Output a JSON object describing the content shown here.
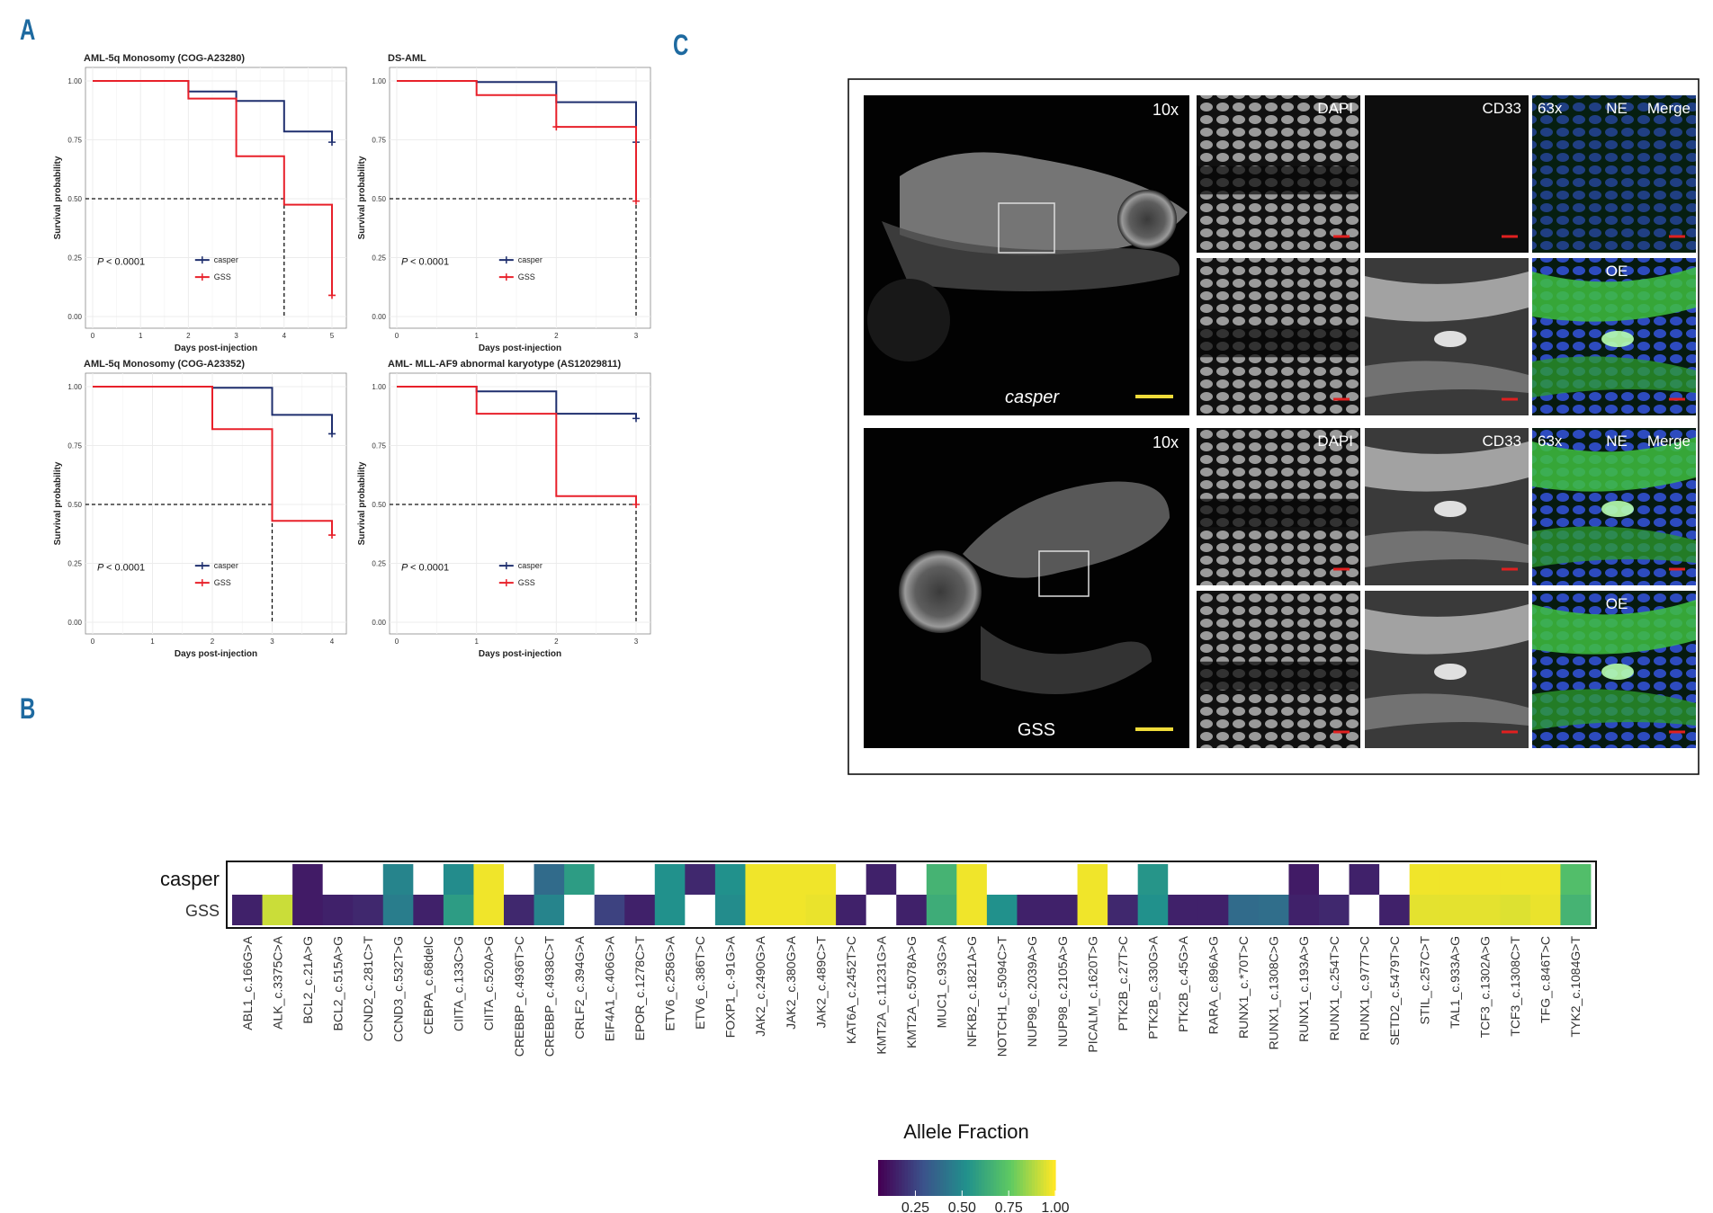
{
  "figure": {
    "panel_labels": {
      "a": "A",
      "b": "B",
      "c": "C"
    }
  },
  "chart_data": [
    {
      "type": "line",
      "subtype": "kaplan-meier",
      "title": "AML-5q Monosomy (COG-A23280)",
      "xlabel": "Days post-injection",
      "ylabel": "Survival probability",
      "xlim": [
        0,
        5
      ],
      "ylim": [
        0,
        1
      ],
      "xticks": [
        0,
        1,
        2,
        3,
        4,
        5
      ],
      "yticks": [
        "0.00",
        "0.25",
        "0.50",
        "0.75",
        "1.00"
      ],
      "pvalue": "< 0.0001",
      "pvalue_symbol": "P",
      "legend": [
        "casper",
        "GSS"
      ],
      "legend_placement": "bottom-center",
      "median_line": {
        "y": 0.5,
        "x_end": 4
      },
      "series": [
        {
          "name": "casper",
          "color": "#1f2f6e",
          "steps": [
            [
              0,
              1.0
            ],
            [
              2,
              1.0
            ],
            [
              2,
              0.955
            ],
            [
              3,
              0.955
            ],
            [
              3,
              0.915
            ],
            [
              4,
              0.915
            ],
            [
              4,
              0.785
            ],
            [
              5,
              0.785
            ],
            [
              5,
              0.74
            ]
          ],
          "censor": [
            [
              5,
              0.74
            ]
          ]
        },
        {
          "name": "GSS",
          "color": "#e8202a",
          "steps": [
            [
              0,
              1.0
            ],
            [
              2,
              1.0
            ],
            [
              2,
              0.925
            ],
            [
              3,
              0.925
            ],
            [
              3,
              0.68
            ],
            [
              4,
              0.68
            ],
            [
              4,
              0.475
            ],
            [
              5,
              0.475
            ],
            [
              5,
              0.09
            ]
          ],
          "censor": [
            [
              5,
              0.09
            ]
          ]
        }
      ]
    },
    {
      "type": "line",
      "subtype": "kaplan-meier",
      "title": "DS-AML",
      "xlabel": "Days post-injection",
      "ylabel": "Survival probability",
      "xlim": [
        0,
        3
      ],
      "ylim": [
        0,
        1
      ],
      "xticks": [
        0,
        1,
        2,
        3
      ],
      "yticks": [
        "0.00",
        "0.25",
        "0.50",
        "0.75",
        "1.00"
      ],
      "pvalue": "< 0.0001",
      "pvalue_symbol": "P",
      "legend": [
        "casper",
        "GSS"
      ],
      "legend_placement": "bottom-center",
      "median_line": {
        "y": 0.5,
        "x_end": 3
      },
      "series": [
        {
          "name": "casper",
          "color": "#1f2f6e",
          "steps": [
            [
              0,
              1.0
            ],
            [
              1,
              1.0
            ],
            [
              1,
              0.995
            ],
            [
              2,
              0.995
            ],
            [
              2,
              0.91
            ],
            [
              3,
              0.91
            ],
            [
              3,
              0.74
            ]
          ],
          "censor": [
            [
              3,
              0.74
            ]
          ]
        },
        {
          "name": "GSS",
          "color": "#e8202a",
          "steps": [
            [
              0,
              1.0
            ],
            [
              1,
              1.0
            ],
            [
              1,
              0.94
            ],
            [
              2,
              0.94
            ],
            [
              2,
              0.805
            ],
            [
              3,
              0.805
            ],
            [
              3,
              0.49
            ]
          ],
          "censor": [
            [
              2,
              0.805
            ],
            [
              3,
              0.49
            ]
          ]
        }
      ]
    },
    {
      "type": "line",
      "subtype": "kaplan-meier",
      "title": "AML-5q Monosomy (COG-A23352)",
      "xlabel": "Days post-injection",
      "ylabel": "Survival probability",
      "xlim": [
        0,
        4
      ],
      "ylim": [
        0,
        1
      ],
      "xticks": [
        0,
        1,
        2,
        3,
        4
      ],
      "yticks": [
        "0.00",
        "0.25",
        "0.50",
        "0.75",
        "1.00"
      ],
      "pvalue": "< 0.0001",
      "pvalue_symbol": "P",
      "legend": [
        "casper",
        "GSS"
      ],
      "legend_placement": "bottom-center",
      "median_line": {
        "y": 0.5,
        "x_end": 3
      },
      "series": [
        {
          "name": "casper",
          "color": "#1f2f6e",
          "steps": [
            [
              0,
              1.0
            ],
            [
              2,
              1.0
            ],
            [
              2,
              0.995
            ],
            [
              3,
              0.995
            ],
            [
              3,
              0.88
            ],
            [
              4,
              0.88
            ],
            [
              4,
              0.8
            ]
          ],
          "censor": [
            [
              4,
              0.8
            ]
          ]
        },
        {
          "name": "GSS",
          "color": "#e8202a",
          "steps": [
            [
              0,
              1.0
            ],
            [
              2,
              1.0
            ],
            [
              2,
              0.82
            ],
            [
              3,
              0.82
            ],
            [
              3,
              0.43
            ],
            [
              4,
              0.43
            ],
            [
              4,
              0.37
            ]
          ],
          "censor": [
            [
              4,
              0.37
            ]
          ]
        }
      ]
    },
    {
      "type": "line",
      "subtype": "kaplan-meier",
      "title": "AML- MLL-AF9 abnormal karyotype (AS12029811)",
      "xlabel": "Days post-injection",
      "ylabel": "Survival probability",
      "xlim": [
        0,
        3
      ],
      "ylim": [
        0,
        1
      ],
      "xticks": [
        0,
        1,
        2,
        3
      ],
      "yticks": [
        "0.00",
        "0.25",
        "0.50",
        "0.75",
        "1.00"
      ],
      "pvalue": "< 0.0001",
      "pvalue_symbol": "P",
      "legend": [
        "casper",
        "GSS"
      ],
      "legend_placement": "bottom-center",
      "median_line": {
        "y": 0.5,
        "x_end": 3
      },
      "series": [
        {
          "name": "casper",
          "color": "#1f2f6e",
          "steps": [
            [
              0,
              1.0
            ],
            [
              1,
              1.0
            ],
            [
              1,
              0.98
            ],
            [
              2,
              0.98
            ],
            [
              2,
              0.885
            ],
            [
              3,
              0.885
            ],
            [
              3,
              0.865
            ]
          ],
          "censor": [
            [
              3,
              0.865
            ]
          ]
        },
        {
          "name": "GSS",
          "color": "#e8202a",
          "steps": [
            [
              0,
              1.0
            ],
            [
              1,
              1.0
            ],
            [
              1,
              0.885
            ],
            [
              2,
              0.885
            ],
            [
              2,
              0.535
            ],
            [
              3,
              0.535
            ],
            [
              3,
              0.5
            ]
          ],
          "censor": [
            [
              3,
              0.5
            ]
          ]
        }
      ]
    },
    {
      "type": "heatmap",
      "rows": [
        "casper",
        "GSS"
      ],
      "columns": [
        "ABL1_c.166G>A",
        "ALK_c.3375C>A",
        "BCL2_c.21A>G",
        "BCL2_c.515A>G",
        "CCND2_c.281C>T",
        "CCND3_c.532T>G",
        "CEBPA_c.68delC",
        "CIITA_c.133C>G",
        "CIITA_c.520A>G",
        "CREBBP_c.4936T>C",
        "CREBBP_c.4938C>T",
        "CRLF2_c.394G>A",
        "EIF4A1_c.406G>A",
        "EPOR_c.1278C>T",
        "ETV6_c.258G>A",
        "ETV6_c.386T>C",
        "FOXP1_c.-91G>A",
        "JAK2_c.2490G>A",
        "JAK2_c.380G>A",
        "JAK2_c.489C>T",
        "KAT6A_c.2452T>C",
        "KMT2A_c.11231G>A",
        "KMT2A_c.5078A>G",
        "MUC1_c.93G>A",
        "NFKB2_c.1821A>G",
        "NOTCH1_c.5094C>T",
        "NUP98_c.2039A>G",
        "NUP98_c.2105A>G",
        "PICALM_c.1620T>G",
        "PTK2B_c.27T>C",
        "PTK2B_c.330G>A",
        "PTK2B_c.45G>A",
        "RARA_c.896A>G",
        "RUNX1_c.*70T>C",
        "RUNX1_c.1308C>G",
        "RUNX1_c.193A>G",
        "RUNX1_c.254T>C",
        "RUNX1_c.977T>C",
        "SETD2_c.5479T>C",
        "STIL_c.257C>T",
        "TAL1_c.933A>G",
        "TCF3_c.1302A>G",
        "TCF3_c.1308C>T",
        "TFG_c.846T>C",
        "TYK2_c.1084G>T"
      ],
      "values": [
        [
          null,
          null,
          0.08,
          null,
          null,
          0.45,
          null,
          0.48,
          0.98,
          null,
          0.35,
          0.55,
          null,
          null,
          0.5,
          0.12,
          0.5,
          0.98,
          0.98,
          0.98,
          null,
          0.1,
          null,
          0.65,
          0.98,
          null,
          null,
          null,
          0.98,
          null,
          0.52,
          null,
          null,
          null,
          null,
          0.08,
          null,
          0.1,
          null,
          0.98,
          0.98,
          0.98,
          0.98,
          0.98,
          0.7
        ],
        [
          0.1,
          0.92,
          0.08,
          0.1,
          0.12,
          0.42,
          0.1,
          0.55,
          0.98,
          0.12,
          0.45,
          null,
          0.2,
          0.1,
          0.5,
          null,
          0.48,
          0.98,
          0.98,
          0.97,
          0.1,
          null,
          0.1,
          0.62,
          0.98,
          0.5,
          0.1,
          0.1,
          0.98,
          0.12,
          0.5,
          0.1,
          0.1,
          0.35,
          0.36,
          0.1,
          0.12,
          null,
          0.1,
          0.96,
          0.96,
          0.96,
          0.95,
          0.97,
          0.65
        ]
      ],
      "legend_title": "Allele Fraction",
      "colorbar_ticks": [
        "0.25",
        "0.50",
        "0.75",
        "1.00"
      ],
      "colormap": "viridis",
      "colors": {
        "low": "#440154",
        "mid": "#21918c",
        "high": "#fde725",
        "missing": "#ffffff"
      }
    }
  ],
  "microscopy": {
    "rows": [
      {
        "overview": {
          "magnification": "10x",
          "label": "casper"
        },
        "channels": [
          "DAPI",
          "CD33",
          "63x",
          "NE",
          "Merge"
        ],
        "sub_labels": {
          "top": "NE",
          "bottom": "OE"
        }
      },
      {
        "overview": {
          "magnification": "10x",
          "label": "GSS"
        },
        "channels": [
          "DAPI",
          "CD33",
          "63x",
          "NE",
          "Merge"
        ],
        "sub_labels": {
          "top": "NE",
          "bottom": "OE"
        }
      }
    ]
  }
}
